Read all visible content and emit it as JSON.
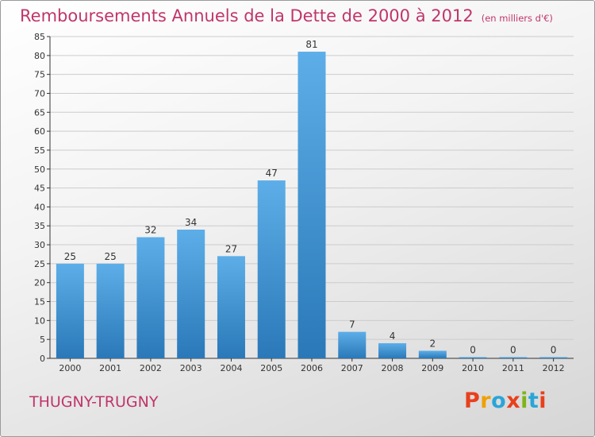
{
  "title": "Remboursements Annuels de la Dette de 2000 à 2012",
  "unit": "(en milliers d'€)",
  "commune": "THUGNY-TRUGNY",
  "logo": {
    "text": "Proxiti",
    "letters": [
      "P",
      "r",
      "o",
      "x",
      "i",
      "t",
      "i"
    ],
    "colors": [
      "#e8401c",
      "#f0a000",
      "#2aa5d8",
      "#e8401c",
      "#7cb518",
      "#2aa5d8",
      "#e8401c"
    ]
  },
  "colors": {
    "title": "#c0356a",
    "bar_light": "#5daee8",
    "bar_dark": "#2a78b8",
    "axis": "#333333",
    "grid": "#cccccc"
  },
  "chart_data": {
    "type": "bar",
    "title": "Remboursements Annuels de la Dette de 2000 à 2012",
    "categories": [
      "2000",
      "2001",
      "2002",
      "2003",
      "2004",
      "2005",
      "2006",
      "2007",
      "2008",
      "2009",
      "2010",
      "2011",
      "2012"
    ],
    "values": [
      25,
      25,
      32,
      34,
      27,
      47,
      81,
      7,
      4,
      2,
      0,
      0,
      0
    ],
    "xlabel": "",
    "ylabel": "",
    "ylim": [
      0,
      85
    ],
    "ytick_step": 5,
    "grid": true,
    "data_labels": true
  }
}
